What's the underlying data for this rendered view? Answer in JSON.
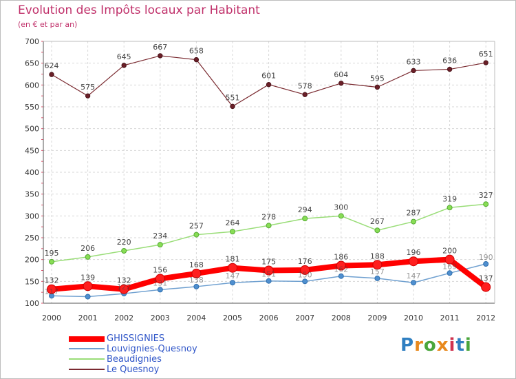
{
  "page": {
    "title": "Evolution des Impôts locaux par Habitant",
    "subtitle": "(en € et par an)",
    "logo": {
      "text": "Proxiti",
      "letter_colors": [
        "#2f7fc1",
        "#e8891d",
        "#4aa63c",
        "#e8891d",
        "#d0334f",
        "#2f7fc1",
        "#4aa63c"
      ]
    }
  },
  "chart_data": {
    "type": "line",
    "title": "Evolution des Impôts locaux par Habitant",
    "subtitle": "(en € et par an)",
    "xlabel": "",
    "ylabel": "",
    "x": [
      "2000",
      "2001",
      "2002",
      "2003",
      "2004",
      "2005",
      "2006",
      "2007",
      "2008",
      "2009",
      "2010",
      "2011",
      "2012"
    ],
    "ylim": [
      100,
      700
    ],
    "yticks": [
      100,
      150,
      200,
      250,
      300,
      350,
      400,
      450,
      500,
      550,
      600,
      650,
      700
    ],
    "grid": true,
    "legend_position": "bottom-left",
    "series": [
      {
        "name": "GHISSIGNIES",
        "color": "#ff0000",
        "labels_shown": true,
        "values": [
          132,
          139,
          132,
          156,
          168,
          181,
          175,
          176,
          186,
          188,
          196,
          200,
          137
        ]
      },
      {
        "name": "Louvignies-Quesnoy",
        "color": "#6fa0d0",
        "labels_shown": false,
        "values": [
          117,
          115,
          122,
          131,
          138,
          147,
          151,
          150,
          162,
          157,
          147,
          169,
          190
        ]
      },
      {
        "name": "Beaudignies",
        "color": "#99dd77",
        "labels_shown": true,
        "values": [
          195,
          206,
          220,
          234,
          257,
          264,
          278,
          294,
          300,
          267,
          287,
          319,
          327
        ]
      },
      {
        "name": "Le Quesnoy",
        "color": "#7a2a30",
        "labels_shown": true,
        "values": [
          624,
          575,
          645,
          667,
          658,
          551,
          601,
          578,
          604,
          595,
          633,
          636,
          651
        ]
      }
    ],
    "extra_labels": [
      {
        "series": "Louvignies-Quesnoy",
        "index": 2,
        "text": "122"
      },
      {
        "series": "Louvignies-Quesnoy",
        "index": 3,
        "text": "131"
      },
      {
        "series": "Louvignies-Quesnoy",
        "index": 4,
        "text": "138"
      },
      {
        "series": "Louvignies-Quesnoy",
        "index": 5,
        "text": "147"
      },
      {
        "series": "Louvignies-Quesnoy",
        "index": 6,
        "text": "151"
      },
      {
        "series": "Louvignies-Quesnoy",
        "index": 7,
        "text": "150"
      },
      {
        "series": "Louvignies-Quesnoy",
        "index": 8,
        "text": "162"
      },
      {
        "series": "Louvignies-Quesnoy",
        "index": 9,
        "text": "157"
      },
      {
        "series": "Louvignies-Quesnoy",
        "index": 10,
        "text": "147"
      },
      {
        "series": "Louvignies-Quesnoy",
        "index": 11,
        "text": "169"
      },
      {
        "series": "Louvignies-Quesnoy",
        "index": 12,
        "text": "190"
      }
    ]
  }
}
